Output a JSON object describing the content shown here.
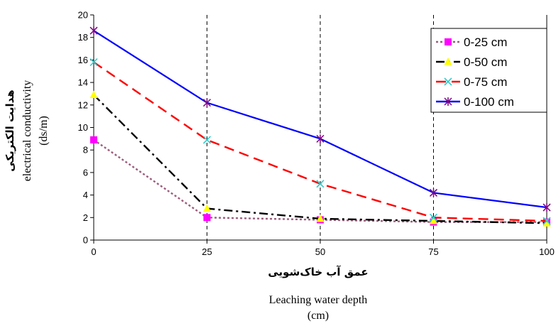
{
  "chart_data": {
    "type": "line",
    "x": [
      0,
      25,
      50,
      75,
      100
    ],
    "x_ticks": [
      "0",
      "25",
      "50",
      "75",
      "100"
    ],
    "y_ticks": [
      "0",
      "2",
      "4",
      "6",
      "8",
      "10",
      "12",
      "14",
      "16",
      "18",
      "20"
    ],
    "xlim": [
      0,
      100
    ],
    "ylim": [
      0,
      20
    ],
    "xlabel_fa": "عمق آب خاک‌شویی",
    "xlabel_en_line1": "Leaching water depth",
    "xlabel_en_line2": "(cm)",
    "ylabel_fa": "هدایت الکتریکی",
    "ylabel_en_line1": "electrical conductivity",
    "ylabel_en_line2": "(ds/m)",
    "vertical_gridlines": [
      25,
      50,
      75
    ],
    "legend_position": "top-right",
    "series": [
      {
        "name": "0-25 cm",
        "values": [
          8.9,
          2.0,
          1.8,
          1.6,
          1.6
        ],
        "color": "#9c5c7a",
        "dash": "3,3",
        "marker": "square",
        "marker_color": "#ff00ff"
      },
      {
        "name": "0-50 cm",
        "values": [
          12.9,
          2.8,
          1.9,
          1.7,
          1.5
        ],
        "color": "#000000",
        "dash": "12,5,3,5",
        "marker": "triangle",
        "marker_color": "#ffff00"
      },
      {
        "name": "0-75 cm",
        "values": [
          15.8,
          8.9,
          5.0,
          2.0,
          1.7
        ],
        "color": "#ff0000",
        "dash": "14,8",
        "marker": "x",
        "marker_color": "#33cccc"
      },
      {
        "name": "0-100 cm",
        "values": [
          18.6,
          12.2,
          9.0,
          4.2,
          2.9
        ],
        "color": "#0000ff",
        "dash": "",
        "marker": "star",
        "marker_color": "#800080"
      }
    ]
  }
}
